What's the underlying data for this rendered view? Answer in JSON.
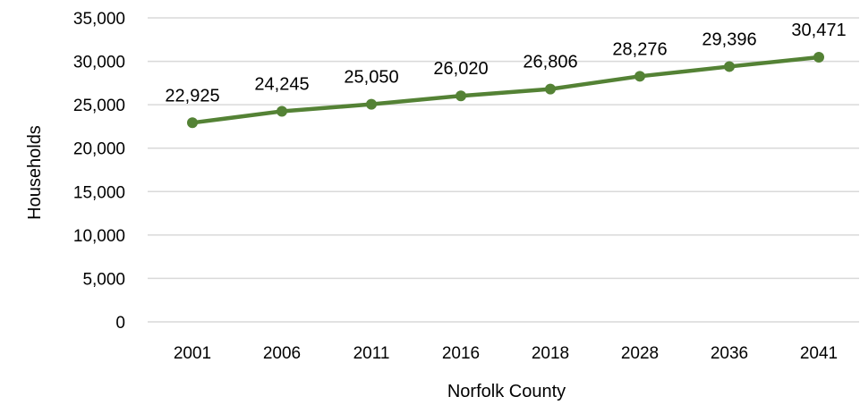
{
  "chart_data": {
    "type": "line",
    "categories": [
      "2001",
      "2006",
      "2011",
      "2016",
      "2018",
      "2028",
      "2036",
      "2041"
    ],
    "series": [
      {
        "values": [
          22925,
          24245,
          25050,
          26020,
          26806,
          28276,
          29396,
          30471
        ],
        "color": "#548235"
      }
    ],
    "data_labels": [
      "22,925",
      "24,245",
      "25,050",
      "26,020",
      "26,806",
      "28,276",
      "29,396",
      "30,471"
    ],
    "y_ticks": [
      0,
      5000,
      10000,
      15000,
      20000,
      25000,
      30000,
      35000
    ],
    "y_tick_labels": [
      "0",
      "5,000",
      "10,000",
      "15,000",
      "20,000",
      "25,000",
      "30,000",
      "35,000"
    ],
    "ylim": [
      0,
      35000
    ],
    "xlabel": "Norfolk County",
    "ylabel": "Households",
    "grid": true,
    "gridline_color": "#d9d9d9"
  }
}
